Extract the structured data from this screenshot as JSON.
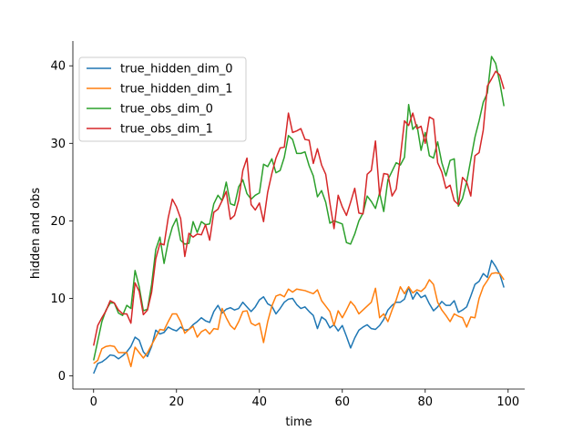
{
  "chart_data": {
    "type": "line",
    "xlabel": "time",
    "ylabel": "hidden and obs",
    "xlim": [
      -5,
      104
    ],
    "ylim": [
      -1.7,
      43.2
    ],
    "xticks": [
      0,
      20,
      40,
      60,
      80,
      100
    ],
    "yticks": [
      0,
      10,
      20,
      30,
      40
    ],
    "grid": false,
    "legend_position": "top-left",
    "x": [
      0,
      1,
      2,
      3,
      4,
      5,
      6,
      7,
      8,
      9,
      10,
      11,
      12,
      13,
      14,
      15,
      16,
      17,
      18,
      19,
      20,
      21,
      22,
      23,
      24,
      25,
      26,
      27,
      28,
      29,
      30,
      31,
      32,
      33,
      34,
      35,
      36,
      37,
      38,
      39,
      40,
      41,
      42,
      43,
      44,
      45,
      46,
      47,
      48,
      49,
      50,
      51,
      52,
      53,
      54,
      55,
      56,
      57,
      58,
      59,
      60,
      61,
      62,
      63,
      64,
      65,
      66,
      67,
      68,
      69,
      70,
      71,
      72,
      73,
      74,
      75,
      76,
      77,
      78,
      79,
      80,
      81,
      82,
      83,
      84,
      85,
      86,
      87,
      88,
      89,
      90,
      91,
      92,
      93,
      94,
      95,
      96,
      97,
      98,
      99
    ],
    "series": [
      {
        "name": "true_hidden_dim_0",
        "color": "#1f77b4",
        "values": [
          0.3,
          1.6,
          1.8,
          2.2,
          2.7,
          2.6,
          2.2,
          2.6,
          3.1,
          3.8,
          5.0,
          4.6,
          3.1,
          2.5,
          3.8,
          5.9,
          5.4,
          5.6,
          6.3,
          6.0,
          5.8,
          6.3,
          5.9,
          6.0,
          6.6,
          7.0,
          7.5,
          7.1,
          6.9,
          8.3,
          9.1,
          8.1,
          8.6,
          8.8,
          8.5,
          8.7,
          9.5,
          8.9,
          8.3,
          8.9,
          9.8,
          10.2,
          9.3,
          9.0,
          8.0,
          8.7,
          9.5,
          9.9,
          10.0,
          9.2,
          8.7,
          8.9,
          8.3,
          7.8,
          6.1,
          7.6,
          7.2,
          6.2,
          6.6,
          5.8,
          6.5,
          5.1,
          3.6,
          4.9,
          5.9,
          6.3,
          6.6,
          6.1,
          6.0,
          6.5,
          7.3,
          8.5,
          9.1,
          9.5,
          9.5,
          9.9,
          11.4,
          9.9,
          10.8,
          10.1,
          10.4,
          9.3,
          8.4,
          8.9,
          9.6,
          9.1,
          9.1,
          9.7,
          8.2,
          8.5,
          8.9,
          10.3,
          11.8,
          12.2,
          13.2,
          12.7,
          14.9,
          14.1,
          13.1,
          11.4
        ]
      },
      {
        "name": "true_hidden_dim_1",
        "color": "#ff7f0e",
        "values": [
          1.6,
          2.0,
          3.5,
          3.8,
          3.9,
          3.8,
          3.0,
          3.0,
          3.0,
          1.2,
          3.7,
          3.0,
          2.3,
          3.0,
          4.0,
          5.0,
          6.0,
          5.9,
          7.0,
          8.0,
          8.0,
          7.0,
          5.5,
          6.0,
          6.4,
          5.0,
          5.7,
          6.0,
          5.4,
          6.1,
          6.0,
          8.7,
          7.5,
          6.5,
          6.0,
          7.0,
          8.3,
          8.4,
          6.8,
          6.5,
          6.8,
          4.3,
          7.0,
          9.0,
          10.3,
          10.5,
          10.2,
          11.2,
          10.8,
          11.2,
          11.1,
          11.0,
          10.8,
          10.6,
          11.1,
          9.7,
          9.0,
          8.3,
          6.5,
          8.4,
          7.5,
          8.5,
          9.6,
          9.0,
          8.0,
          8.5,
          9.0,
          9.5,
          11.3,
          7.5,
          8.0,
          7.0,
          8.5,
          9.8,
          11.5,
          10.6,
          11.5,
          10.7,
          11.1,
          10.9,
          11.4,
          12.4,
          11.8,
          9.5,
          8.5,
          7.8,
          7.0,
          8.0,
          7.7,
          7.5,
          6.3,
          7.6,
          7.5,
          10.0,
          11.5,
          12.3,
          13.2,
          13.3,
          13.2,
          12.4
        ]
      },
      {
        "name": "true_obs_dim_0",
        "color": "#2ca02c",
        "values": [
          2.0,
          4.5,
          7.0,
          8.5,
          9.4,
          9.4,
          8.1,
          7.8,
          9.1,
          8.7,
          13.6,
          11.5,
          8.4,
          8.6,
          11.8,
          16.3,
          17.9,
          14.5,
          17.3,
          19.2,
          20.3,
          17.5,
          17.0,
          17.1,
          19.9,
          18.5,
          19.9,
          19.5,
          19.6,
          22.2,
          23.3,
          22.6,
          25.0,
          22.2,
          22.0,
          24.4,
          25.3,
          23.5,
          22.8,
          23.3,
          23.6,
          27.3,
          27.0,
          28.0,
          26.2,
          26.5,
          28.2,
          31.0,
          30.5,
          28.7,
          28.7,
          28.9,
          27.1,
          25.8,
          23.1,
          23.9,
          22.4,
          19.7,
          20.0,
          19.8,
          19.6,
          17.2,
          17.0,
          18.3,
          20.0,
          21.0,
          23.2,
          22.5,
          21.6,
          23.6,
          21.2,
          25.3,
          26.4,
          27.5,
          27.2,
          28.2,
          35.0,
          31.8,
          32.4,
          29.1,
          31.4,
          28.4,
          28.1,
          30.2,
          27.5,
          25.8,
          27.8,
          28.0,
          21.9,
          22.9,
          25.0,
          27.9,
          30.8,
          32.9,
          35.3,
          36.5,
          41.2,
          40.3,
          37.8,
          34.8
        ]
      },
      {
        "name": "true_obs_dim_1",
        "color": "#d62728",
        "values": [
          3.9,
          6.5,
          7.5,
          8.4,
          9.7,
          9.4,
          8.5,
          8.0,
          8.0,
          6.8,
          12.0,
          10.9,
          7.9,
          8.5,
          10.8,
          15.1,
          17.1,
          16.9,
          20.4,
          22.8,
          21.8,
          20.3,
          15.4,
          18.4,
          17.9,
          18.3,
          18.2,
          19.5,
          17.5,
          21.1,
          21.5,
          22.6,
          23.8,
          20.2,
          20.7,
          22.7,
          26.5,
          28.1,
          22.1,
          21.4,
          22.3,
          19.9,
          23.7,
          26.1,
          28.1,
          29.4,
          29.5,
          33.9,
          31.4,
          31.6,
          31.9,
          30.5,
          30.4,
          27.4,
          29.3,
          27.2,
          26.0,
          22.3,
          19.0,
          23.3,
          21.8,
          20.7,
          22.4,
          24.2,
          21.0,
          20.9,
          26.0,
          26.5,
          30.3,
          23.3,
          26.1,
          26.0,
          23.2,
          24.1,
          28.2,
          32.9,
          32.3,
          33.9,
          31.9,
          32.2,
          30.0,
          33.4,
          33.1,
          27.5,
          26.3,
          24.2,
          24.6,
          22.6,
          22.1,
          25.6,
          25.0,
          23.2,
          28.4,
          28.8,
          31.7,
          37.4,
          38.3,
          39.3,
          38.8,
          37.0
        ]
      }
    ]
  }
}
